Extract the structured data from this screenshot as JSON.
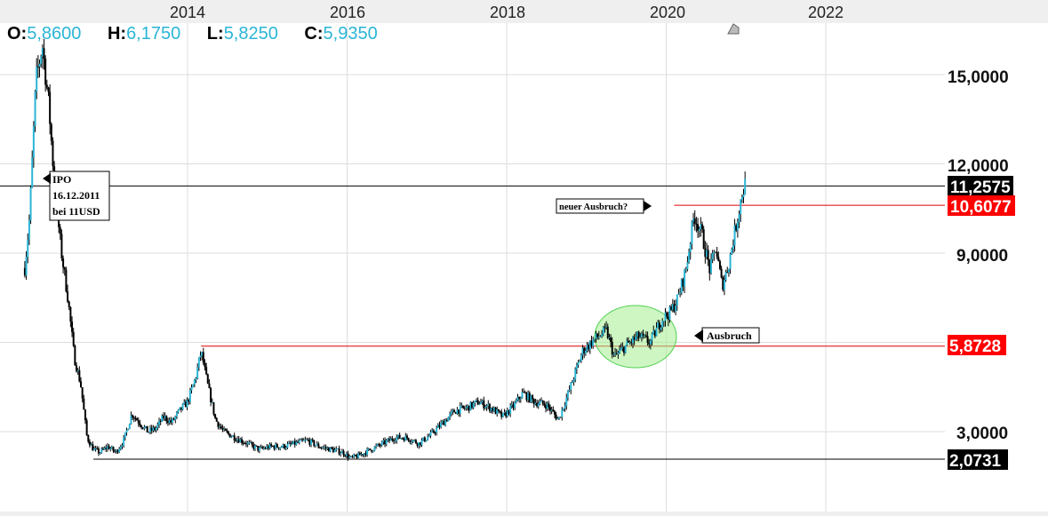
{
  "ohlc": {
    "o_label": "O:",
    "o_value": "5,8600",
    "h_label": "H:",
    "h_value": "6,1750",
    "l_label": "L:",
    "l_value": "5,8250",
    "c_label": "C:",
    "c_value": "5,9350"
  },
  "colors": {
    "candle": "#2bb5d5",
    "wick": "#000000",
    "support_line": "#000000",
    "resistance_line": "#e00000",
    "red_tag": "#ff0000",
    "black_tag": "#000000",
    "highlight": "#a6ee92",
    "grid": "#dddddd",
    "panel": "#efefef"
  },
  "chart_data": {
    "type": "candlestick",
    "x_ticks": [
      "2014",
      "2016",
      "2018",
      "2020",
      "2022"
    ],
    "y_ticks": [
      "3,0000",
      "9,0000",
      "12,0000",
      "15,0000"
    ],
    "ylim": [
      1,
      17
    ],
    "grid": true,
    "price_levels": [
      {
        "value": 11.2575,
        "label": "11,2575",
        "style": "black"
      },
      {
        "value": 10.6077,
        "label": "10,6077",
        "style": "red"
      },
      {
        "value": 5.8728,
        "label": "5,8728",
        "style": "red"
      },
      {
        "value": 2.0731,
        "label": "2,0731",
        "style": "black"
      }
    ],
    "annotations": {
      "ipo": [
        "IPO",
        "16.12.2011",
        "bei 11USD"
      ],
      "breakout": "Ausbruch",
      "new_breakout": "neuer Ausbruch?"
    },
    "price_path": [
      [
        2011.96,
        8.5
      ],
      [
        2012.02,
        10.2
      ],
      [
        2012.1,
        14.8
      ],
      [
        2012.18,
        16.0
      ],
      [
        2012.26,
        14.0
      ],
      [
        2012.34,
        11.0
      ],
      [
        2012.42,
        9.0
      ],
      [
        2012.5,
        7.5
      ],
      [
        2012.58,
        5.5
      ],
      [
        2012.66,
        4.6
      ],
      [
        2012.74,
        2.8
      ],
      [
        2012.82,
        2.4
      ],
      [
        2012.9,
        2.3
      ],
      [
        2013.0,
        2.5
      ],
      [
        2013.1,
        2.3
      ],
      [
        2013.2,
        2.7
      ],
      [
        2013.3,
        3.6
      ],
      [
        2013.4,
        3.3
      ],
      [
        2013.5,
        3.0
      ],
      [
        2013.6,
        3.1
      ],
      [
        2013.7,
        3.5
      ],
      [
        2013.8,
        3.3
      ],
      [
        2013.9,
        3.7
      ],
      [
        2014.0,
        4.0
      ],
      [
        2014.1,
        4.8
      ],
      [
        2014.17,
        5.7
      ],
      [
        2014.25,
        4.6
      ],
      [
        2014.35,
        3.4
      ],
      [
        2014.45,
        3.0
      ],
      [
        2014.6,
        2.8
      ],
      [
        2014.75,
        2.6
      ],
      [
        2014.9,
        2.4
      ],
      [
        2015.05,
        2.5
      ],
      [
        2015.2,
        2.5
      ],
      [
        2015.35,
        2.6
      ],
      [
        2015.5,
        2.7
      ],
      [
        2015.65,
        2.5
      ],
      [
        2015.8,
        2.4
      ],
      [
        2015.95,
        2.3
      ],
      [
        2016.05,
        2.1
      ],
      [
        2016.15,
        2.2
      ],
      [
        2016.3,
        2.4
      ],
      [
        2016.45,
        2.6
      ],
      [
        2016.6,
        2.8
      ],
      [
        2016.75,
        2.8
      ],
      [
        2016.9,
        2.6
      ],
      [
        2017.05,
        2.9
      ],
      [
        2017.2,
        3.3
      ],
      [
        2017.35,
        3.7
      ],
      [
        2017.5,
        3.8
      ],
      [
        2017.65,
        4.0
      ],
      [
        2017.8,
        3.8
      ],
      [
        2017.95,
        3.5
      ],
      [
        2018.1,
        3.9
      ],
      [
        2018.2,
        4.3
      ],
      [
        2018.35,
        4.0
      ],
      [
        2018.5,
        3.9
      ],
      [
        2018.65,
        3.4
      ],
      [
        2018.8,
        4.5
      ],
      [
        2018.95,
        5.7
      ],
      [
        2019.1,
        6.1
      ],
      [
        2019.25,
        6.4
      ],
      [
        2019.35,
        5.5
      ],
      [
        2019.5,
        5.9
      ],
      [
        2019.65,
        6.2
      ],
      [
        2019.8,
        6.0
      ],
      [
        2019.95,
        6.8
      ],
      [
        2020.05,
        7.0
      ],
      [
        2020.15,
        7.5
      ],
      [
        2020.25,
        8.5
      ],
      [
        2020.35,
        10.3
      ],
      [
        2020.45,
        9.6
      ],
      [
        2020.55,
        8.4
      ],
      [
        2020.62,
        9.2
      ],
      [
        2020.7,
        7.9
      ],
      [
        2020.78,
        8.6
      ],
      [
        2020.88,
        10.0
      ],
      [
        2020.95,
        11.0
      ],
      [
        2021.0,
        11.4
      ]
    ]
  }
}
